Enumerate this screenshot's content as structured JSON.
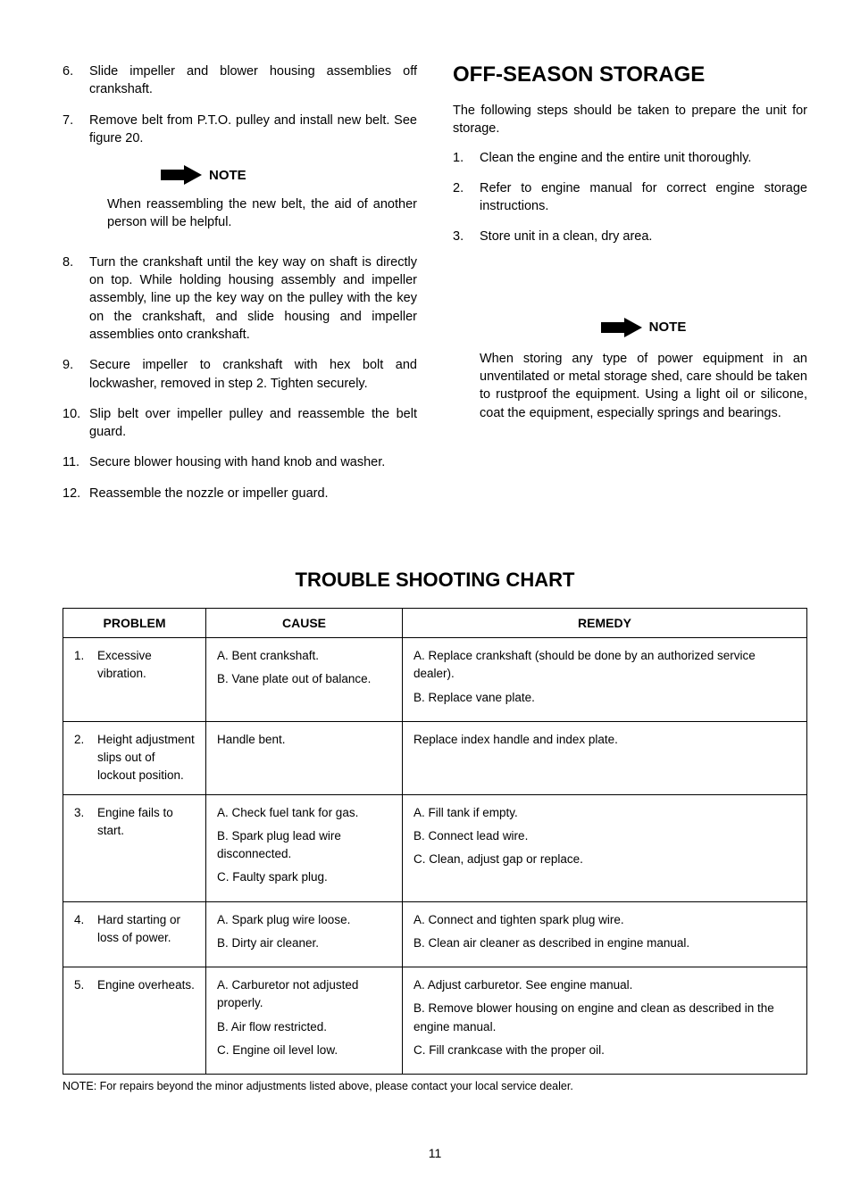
{
  "left_column": {
    "items": [
      {
        "num": "6.",
        "text": "Slide impeller and blower housing assemblies off crankshaft."
      },
      {
        "num": "7.",
        "text": "Remove belt from P.T.O. pulley and install new belt. See figure 20."
      }
    ],
    "note1": {
      "label": "NOTE",
      "text": "When reassembling the new belt, the aid of another person will be helpful."
    },
    "items2": [
      {
        "num": "8.",
        "text": "Turn the crankshaft until the key way on shaft is directly on top. While holding housing assembly and impeller assembly, line up the key way on the pulley with the key on the crankshaft, and slide housing and impeller assemblies onto crankshaft."
      },
      {
        "num": "9.",
        "text": "Secure impeller to crankshaft with hex bolt and lockwasher, removed in step 2. Tighten securely."
      },
      {
        "num": "10.",
        "text": "Slip belt over impeller pulley and reassemble the belt guard."
      },
      {
        "num": "11.",
        "text": "Secure blower housing with hand knob and washer."
      },
      {
        "num": "12.",
        "text": "Reassemble the nozzle or impeller guard."
      }
    ]
  },
  "right_column": {
    "heading": "OFF-SEASON STORAGE",
    "intro": "The following steps should be taken to prepare the unit for storage.",
    "items": [
      {
        "num": "1.",
        "text": "Clean the engine and the entire unit thoroughly."
      },
      {
        "num": "2.",
        "text": "Refer to engine manual for correct engine storage instructions."
      },
      {
        "num": "3.",
        "text": "Store unit in a clean, dry area."
      }
    ],
    "note2": {
      "label": "NOTE",
      "text": "When storing any type of power equipment in an unventilated or metal storage shed, care should be taken to rustproof the equipment. Using a light oil or silicone, coat the equipment, especially springs and bearings."
    }
  },
  "troubleshooting": {
    "heading": "TROUBLE SHOOTING CHART",
    "columns": {
      "c1": "PROBLEM",
      "c2": "CAUSE",
      "c3": "REMEDY"
    },
    "rows": [
      {
        "problem_num": "1.",
        "problem": "Excessive vibration.",
        "causes": [
          "A. Bent crankshaft.",
          "B. Vane plate out of balance."
        ],
        "remedies": [
          "A. Replace crankshaft (should be done by an authorized service dealer).",
          "B. Replace vane plate."
        ]
      },
      {
        "problem_num": "2.",
        "problem": "Height adjustment slips out of lockout position.",
        "causes": [
          "Handle bent."
        ],
        "remedies": [
          "Replace index handle and index plate."
        ]
      },
      {
        "problem_num": "3.",
        "problem": "Engine fails to start.",
        "causes": [
          "A. Check fuel tank for gas.",
          "B. Spark plug lead wire disconnected.",
          "C. Faulty spark plug."
        ],
        "remedies": [
          "A. Fill tank if empty.",
          "B. Connect lead wire.",
          "C. Clean, adjust gap or replace."
        ]
      },
      {
        "problem_num": "4.",
        "problem": "Hard starting or loss of power.",
        "causes": [
          "A. Spark plug wire loose.",
          "B. Dirty air cleaner."
        ],
        "remedies": [
          "A. Connect and tighten spark plug wire.",
          "B. Clean air cleaner as described in engine manual."
        ]
      },
      {
        "problem_num": "5.",
        "problem": "Engine overheats.",
        "causes": [
          "A. Carburetor not adjusted properly.",
          "B. Air flow restricted.",
          "C. Engine oil level low."
        ],
        "remedies": [
          "A. Adjust carburetor. See engine manual.",
          "B. Remove blower housing on engine and clean as described in the engine manual.",
          "C. Fill crankcase with the proper oil."
        ]
      }
    ],
    "footnote": "NOTE: For repairs beyond the minor adjustments listed above, please contact your local service dealer."
  },
  "page_number": "11"
}
